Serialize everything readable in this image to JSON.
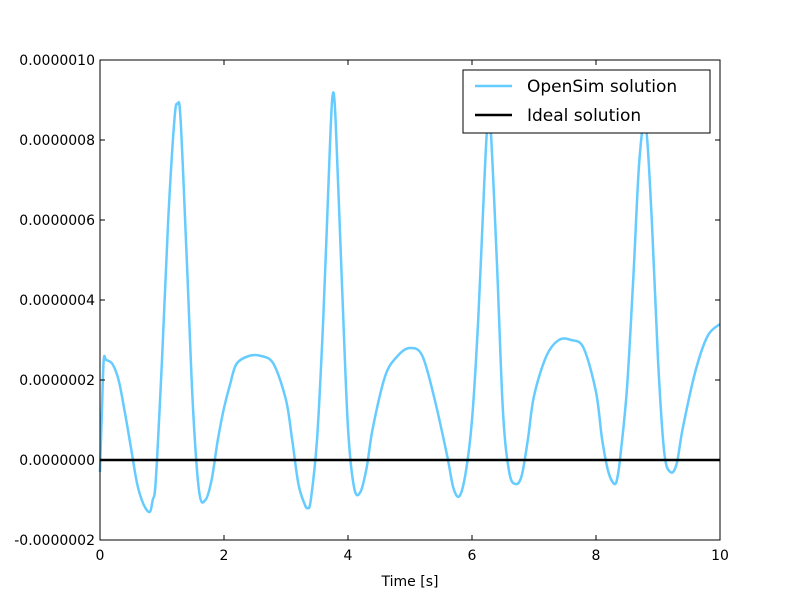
{
  "chart_data": {
    "type": "line",
    "xlabel": "Time [s]",
    "ylabel": "",
    "title": "",
    "xlim": [
      0,
      10
    ],
    "ylim": [
      -2e-07,
      1e-06
    ],
    "x_ticks": [
      0,
      2,
      4,
      6,
      8,
      10
    ],
    "x_tick_labels": [
      "0",
      "2",
      "4",
      "6",
      "8",
      "10"
    ],
    "y_ticks": [
      -2e-07,
      0.0,
      2e-07,
      4e-07,
      6e-07,
      8e-07,
      1e-06
    ],
    "y_tick_labels": [
      "-0.0000002",
      "0.0000000",
      "0.0000002",
      "0.0000004",
      "0.0000006",
      "0.0000008",
      "0.0000010"
    ],
    "grid": false,
    "legend_position": "top-right",
    "series": [
      {
        "name": "OpenSim solution",
        "color": "#66ccff",
        "x": [
          0.0,
          0.03,
          0.06,
          0.1,
          0.2,
          0.3,
          0.4,
          0.5,
          0.6,
          0.7,
          0.8,
          0.85,
          0.9,
          1.0,
          1.1,
          1.2,
          1.25,
          1.3,
          1.4,
          1.5,
          1.6,
          1.7,
          1.8,
          1.9,
          2.0,
          2.1,
          2.2,
          2.4,
          2.6,
          2.8,
          3.0,
          3.1,
          3.2,
          3.3,
          3.35,
          3.4,
          3.5,
          3.6,
          3.7,
          3.75,
          3.8,
          3.9,
          4.0,
          4.1,
          4.2,
          4.3,
          4.4,
          4.6,
          4.8,
          5.0,
          5.2,
          5.4,
          5.6,
          5.7,
          5.8,
          5.9,
          6.0,
          6.1,
          6.2,
          6.25,
          6.3,
          6.4,
          6.5,
          6.6,
          6.7,
          6.8,
          6.9,
          7.0,
          7.2,
          7.4,
          7.6,
          7.8,
          8.0,
          8.1,
          8.2,
          8.3,
          8.35,
          8.4,
          8.5,
          8.6,
          8.7,
          8.8,
          8.9,
          9.0,
          9.1,
          9.2,
          9.3,
          9.4,
          9.6,
          9.8,
          10.0
        ],
        "values": [
          -3e-08,
          1.2e-07,
          2.5e-07,
          2.5e-07,
          2.4e-07,
          2e-07,
          1.2e-07,
          3e-08,
          -6e-08,
          -1.1e-07,
          -1.3e-07,
          -1e-07,
          -5e-08,
          2.5e-07,
          6e-07,
          8.5e-07,
          8.9e-07,
          8.5e-07,
          5e-07,
          1.3e-07,
          -8e-08,
          -1e-07,
          -5e-08,
          5e-08,
          1.3e-07,
          1.9e-07,
          2.4e-07,
          2.6e-07,
          2.6e-07,
          2.4e-07,
          1.5e-07,
          5e-08,
          -6e-08,
          -1.1e-07,
          -1.2e-07,
          -1e-07,
          5e-08,
          3.5e-07,
          7.5e-07,
          9.1e-07,
          8.5e-07,
          4.5e-07,
          8e-08,
          -7e-08,
          -8e-08,
          -2e-08,
          8e-08,
          2.1e-07,
          2.6e-07,
          2.8e-07,
          2.6e-07,
          1.5e-07,
          1e-08,
          -7e-08,
          -9e-08,
          -3e-08,
          1e-07,
          3.5e-07,
          7e-07,
          8.4e-07,
          8.3e-07,
          5e-07,
          1.2e-07,
          -3e-08,
          -6e-08,
          -4e-08,
          5e-08,
          1.6e-07,
          2.6e-07,
          3e-07,
          3e-07,
          2.8e-07,
          1.7e-07,
          5e-08,
          -3e-08,
          -6e-08,
          -4e-08,
          2e-08,
          1.8e-07,
          4.5e-07,
          7.5e-07,
          8.4e-07,
          6e-07,
          2.5e-07,
          2e-08,
          -3e-08,
          -1e-08,
          8e-08,
          2.2e-07,
          3.1e-07,
          3.4e-07
        ]
      },
      {
        "name": "Ideal solution",
        "color": "#000000",
        "x": [
          0,
          10
        ],
        "values": [
          0.0,
          0.0
        ]
      }
    ]
  }
}
